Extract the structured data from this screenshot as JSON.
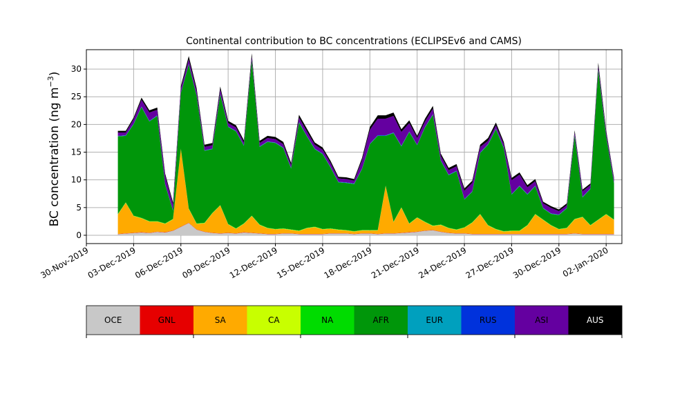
{
  "chart_data": {
    "type": "area",
    "stacked": true,
    "title": "Continental contribution to BC concentrations (ECLIPSEv6 and CAMS)",
    "ylabel": "BC concentration (ng m",
    "ylabel_sup": "−3",
    "ylabel_close": ")",
    "xlabel": "",
    "ylim": [
      -1.5,
      33.5
    ],
    "xlim": [
      "2019-11-30",
      "2020-01-03"
    ],
    "grid": true,
    "yticks": [
      0,
      5,
      10,
      15,
      20,
      25,
      30
    ],
    "xticks": [
      "2019-11-30",
      "2019-12-03",
      "2019-12-06",
      "2019-12-09",
      "2019-12-12",
      "2019-12-15",
      "2019-12-18",
      "2019-12-21",
      "2019-12-24",
      "2019-12-27",
      "2019-12-30",
      "2020-01-02"
    ],
    "xtick_labels": [
      "30-Nov-2019",
      "03-Dec-2019",
      "06-Dec-2019",
      "09-Dec-2019",
      "12-Dec-2019",
      "15-Dec-2019",
      "18-Dec-2019",
      "21-Dec-2019",
      "24-Dec-2019",
      "27-Dec-2019",
      "30-Dec-2019",
      "02-Jan-2020"
    ],
    "x": [
      "2019-12-02T00:00",
      "2019-12-02T12:00",
      "2019-12-03T00:00",
      "2019-12-03T12:00",
      "2019-12-04T00:00",
      "2019-12-04T12:00",
      "2019-12-05T00:00",
      "2019-12-05T12:00",
      "2019-12-06T00:00",
      "2019-12-06T12:00",
      "2019-12-07T00:00",
      "2019-12-07T12:00",
      "2019-12-08T00:00",
      "2019-12-08T12:00",
      "2019-12-09T00:00",
      "2019-12-09T12:00",
      "2019-12-10T00:00",
      "2019-12-10T12:00",
      "2019-12-11T00:00",
      "2019-12-11T12:00",
      "2019-12-12T00:00",
      "2019-12-12T12:00",
      "2019-12-13T00:00",
      "2019-12-13T12:00",
      "2019-12-14T00:00",
      "2019-12-14T12:00",
      "2019-12-15T00:00",
      "2019-12-15T12:00",
      "2019-12-16T00:00",
      "2019-12-16T12:00",
      "2019-12-17T00:00",
      "2019-12-17T12:00",
      "2019-12-18T00:00",
      "2019-12-18T12:00",
      "2019-12-19T00:00",
      "2019-12-19T12:00",
      "2019-12-20T00:00",
      "2019-12-20T12:00",
      "2019-12-21T00:00",
      "2019-12-21T12:00",
      "2019-12-22T00:00",
      "2019-12-22T12:00",
      "2019-12-23T00:00",
      "2019-12-23T12:00",
      "2019-12-24T00:00",
      "2019-12-24T12:00",
      "2019-12-25T00:00",
      "2019-12-25T12:00",
      "2019-12-26T00:00",
      "2019-12-26T12:00",
      "2019-12-27T00:00",
      "2019-12-27T12:00",
      "2019-12-28T00:00",
      "2019-12-28T12:00",
      "2019-12-29T00:00",
      "2019-12-29T12:00",
      "2019-12-30T00:00",
      "2019-12-30T12:00",
      "2019-12-31T00:00",
      "2019-12-31T12:00",
      "2020-01-01T00:00",
      "2020-01-01T12:00",
      "2020-01-02T00:00",
      "2020-01-02T12:00"
    ],
    "series": [
      {
        "name": "OCE",
        "color": "#c8c8c8",
        "values": [
          0.2,
          0.3,
          0.4,
          0.5,
          0.4,
          0.6,
          0.5,
          0.8,
          1.5,
          2.2,
          1.0,
          0.6,
          0.4,
          0.3,
          0.4,
          0.3,
          0.5,
          0.4,
          0.3,
          0.2,
          0.2,
          0.3,
          0.3,
          0.2,
          0.2,
          0.2,
          0.2,
          0.3,
          0.3,
          0.3,
          0.2,
          0.3,
          0.3,
          0.2,
          0.3,
          0.3,
          0.4,
          0.5,
          0.6,
          0.8,
          0.9,
          0.6,
          0.4,
          0.3,
          0.3,
          0.2,
          0.2,
          0.2,
          0.2,
          0.2,
          0.2,
          0.2,
          0.2,
          0.2,
          0.2,
          0.2,
          0.2,
          0.2,
          0.3,
          0.2,
          0.2,
          0.2,
          0.2,
          0.2
        ]
      },
      {
        "name": "GNL",
        "color": "#e60000",
        "values": [
          0.05,
          0.05,
          0.05,
          0.05,
          0.05,
          0.05,
          0.05,
          0.05,
          0.05,
          0.05,
          0.05,
          0.05,
          0.05,
          0.05,
          0.05,
          0.05,
          0.05,
          0.05,
          0.05,
          0.05,
          0.05,
          0.05,
          0.05,
          0.05,
          0.05,
          0.05,
          0.05,
          0.05,
          0.05,
          0.05,
          0.05,
          0.05,
          0.05,
          0.05,
          0.05,
          0.05,
          0.05,
          0.05,
          0.05,
          0.05,
          0.05,
          0.05,
          0.05,
          0.05,
          0.05,
          0.05,
          0.05,
          0.05,
          0.05,
          0.05,
          0.05,
          0.05,
          0.05,
          0.05,
          0.05,
          0.05,
          0.05,
          0.05,
          0.05,
          0.05,
          0.05,
          0.05,
          0.05,
          0.05
        ]
      },
      {
        "name": "SA",
        "color": "#ffaa00",
        "values": [
          3.5,
          5.5,
          3.0,
          2.5,
          2.0,
          1.8,
          1.5,
          2.0,
          14.0,
          2.5,
          1.0,
          1.5,
          3.5,
          5.0,
          1.5,
          0.8,
          1.5,
          3.0,
          1.5,
          1.0,
          0.8,
          0.8,
          0.6,
          0.5,
          1.0,
          1.2,
          0.8,
          0.8,
          0.6,
          0.5,
          0.4,
          0.5,
          0.5,
          0.6,
          8.5,
          2.0,
          4.5,
          1.5,
          2.5,
          1.5,
          0.7,
          1.2,
          0.8,
          0.6,
          1.0,
          2.0,
          3.5,
          1.5,
          0.8,
          0.4,
          0.5,
          0.5,
          1.5,
          3.5,
          2.5,
          1.5,
          0.8,
          1.0,
          2.5,
          3.0,
          1.5,
          2.5,
          3.5,
          2.5
        ]
      },
      {
        "name": "CA",
        "color": "#c8ff00",
        "values": [
          0.05,
          0.05,
          0.05,
          0.05,
          0.05,
          0.05,
          0.05,
          0.05,
          0.05,
          0.05,
          0.05,
          0.05,
          0.05,
          0.05,
          0.05,
          0.05,
          0.05,
          0.05,
          0.05,
          0.05,
          0.05,
          0.05,
          0.05,
          0.05,
          0.05,
          0.05,
          0.05,
          0.05,
          0.05,
          0.05,
          0.05,
          0.05,
          0.05,
          0.05,
          0.05,
          0.05,
          0.05,
          0.05,
          0.05,
          0.05,
          0.05,
          0.05,
          0.05,
          0.05,
          0.05,
          0.05,
          0.05,
          0.05,
          0.05,
          0.05,
          0.05,
          0.05,
          0.05,
          0.05,
          0.05,
          0.05,
          0.05,
          0.05,
          0.05,
          0.05,
          0.05,
          0.05,
          0.05,
          0.05
        ]
      },
      {
        "name": "NA",
        "color": "#00dc00",
        "values": [
          0.05,
          0.05,
          0.05,
          0.05,
          0.05,
          0.05,
          0.05,
          0.05,
          0.05,
          0.05,
          0.05,
          0.05,
          0.05,
          0.05,
          0.05,
          0.05,
          0.05,
          0.05,
          0.05,
          0.05,
          0.05,
          0.05,
          0.05,
          0.05,
          0.05,
          0.05,
          0.05,
          0.05,
          0.05,
          0.05,
          0.05,
          0.05,
          0.05,
          0.05,
          0.05,
          0.05,
          0.05,
          0.05,
          0.05,
          0.05,
          0.05,
          0.05,
          0.05,
          0.05,
          0.05,
          0.05,
          0.05,
          0.05,
          0.05,
          0.05,
          0.05,
          0.05,
          0.05,
          0.05,
          0.05,
          0.05,
          0.05,
          0.05,
          0.05,
          0.05,
          0.05,
          0.05,
          0.05,
          0.05
        ]
      },
      {
        "name": "AFR",
        "color": "#00960a",
        "values": [
          14.0,
          12.0,
          16.5,
          20.0,
          18.0,
          19.0,
          7.0,
          1.5,
          10.0,
          26.0,
          23.0,
          13.0,
          11.5,
          20.0,
          17.5,
          17.5,
          14.0,
          28.0,
          14.0,
          15.5,
          15.5,
          14.5,
          11.0,
          19.5,
          16.5,
          14.0,
          13.5,
          11.0,
          8.5,
          8.5,
          8.5,
          11.0,
          15.5,
          17.0,
          9.0,
          16.0,
          11.0,
          16.5,
          13.0,
          17.0,
          20.0,
          11.5,
          9.5,
          10.5,
          5.0,
          5.5,
          11.0,
          14.5,
          18.0,
          15.0,
          6.5,
          8.0,
          5.5,
          5.0,
          2.0,
          2.0,
          2.5,
          3.5,
          15.0,
          3.5,
          6.5,
          27.0,
          14.0,
          6.5
        ]
      },
      {
        "name": "EUR",
        "color": "#00a0be",
        "values": [
          0.05,
          0.05,
          0.05,
          0.05,
          0.05,
          0.05,
          0.05,
          0.05,
          0.05,
          0.05,
          0.05,
          0.05,
          0.05,
          0.05,
          0.05,
          0.05,
          0.05,
          0.05,
          0.05,
          0.05,
          0.05,
          0.05,
          0.05,
          0.05,
          0.05,
          0.05,
          0.05,
          0.05,
          0.05,
          0.05,
          0.05,
          0.05,
          0.05,
          0.05,
          0.05,
          0.05,
          0.05,
          0.05,
          0.05,
          0.05,
          0.05,
          0.05,
          0.05,
          0.05,
          0.05,
          0.05,
          0.05,
          0.05,
          0.05,
          0.05,
          0.05,
          0.05,
          0.05,
          0.05,
          0.05,
          0.05,
          0.05,
          0.05,
          0.05,
          0.05,
          0.05,
          0.05,
          0.05,
          0.05
        ]
      },
      {
        "name": "RUS",
        "color": "#0032dc",
        "values": [
          0.05,
          0.05,
          0.05,
          0.05,
          0.05,
          0.05,
          0.05,
          0.05,
          0.05,
          0.05,
          0.05,
          0.05,
          0.05,
          0.05,
          0.05,
          0.05,
          0.05,
          0.05,
          0.05,
          0.05,
          0.05,
          0.05,
          0.05,
          0.05,
          0.05,
          0.05,
          0.05,
          0.05,
          0.05,
          0.05,
          0.05,
          0.05,
          0.05,
          0.05,
          0.05,
          0.05,
          0.05,
          0.05,
          0.05,
          0.05,
          0.05,
          0.05,
          0.05,
          0.05,
          0.05,
          0.05,
          0.05,
          0.05,
          0.05,
          0.05,
          0.05,
          0.05,
          0.05,
          0.05,
          0.05,
          0.05,
          0.05,
          0.05,
          0.05,
          0.05,
          0.05,
          0.05,
          0.05,
          0.05
        ]
      },
      {
        "name": "ASI",
        "color": "#6400a0",
        "values": [
          0.6,
          0.5,
          0.8,
          1.2,
          1.5,
          1.0,
          1.5,
          1.0,
          0.8,
          0.8,
          0.8,
          0.6,
          0.6,
          0.8,
          0.6,
          0.6,
          0.5,
          0.6,
          0.6,
          0.6,
          0.6,
          0.6,
          0.5,
          0.8,
          0.8,
          0.7,
          0.7,
          0.7,
          0.6,
          0.6,
          0.5,
          1.5,
          2.5,
          3.0,
          3.0,
          3.0,
          2.5,
          1.5,
          1.2,
          1.0,
          1.0,
          0.8,
          0.8,
          0.8,
          1.5,
          1.5,
          1.0,
          0.6,
          0.6,
          0.6,
          2.5,
          2.0,
          1.2,
          0.8,
          0.8,
          1.0,
          0.6,
          0.5,
          0.5,
          1.0,
          0.6,
          0.6,
          0.6,
          0.6
        ]
      },
      {
        "name": "AUS",
        "color": "#000000",
        "values": [
          0.3,
          0.3,
          0.3,
          0.4,
          0.4,
          0.4,
          0.4,
          0.4,
          0.4,
          0.6,
          0.5,
          0.4,
          0.4,
          0.5,
          0.4,
          0.4,
          0.4,
          0.6,
          0.4,
          0.4,
          0.4,
          0.4,
          0.4,
          0.5,
          0.5,
          0.4,
          0.4,
          0.4,
          0.3,
          0.3,
          0.3,
          0.4,
          0.5,
          0.6,
          0.6,
          0.6,
          0.5,
          0.5,
          0.4,
          0.5,
          0.5,
          0.4,
          0.4,
          0.4,
          0.4,
          0.4,
          0.4,
          0.5,
          0.5,
          0.4,
          0.4,
          0.4,
          0.4,
          0.4,
          0.3,
          0.3,
          0.3,
          0.3,
          0.4,
          0.3,
          0.3,
          0.6,
          0.4,
          0.3
        ]
      }
    ]
  }
}
